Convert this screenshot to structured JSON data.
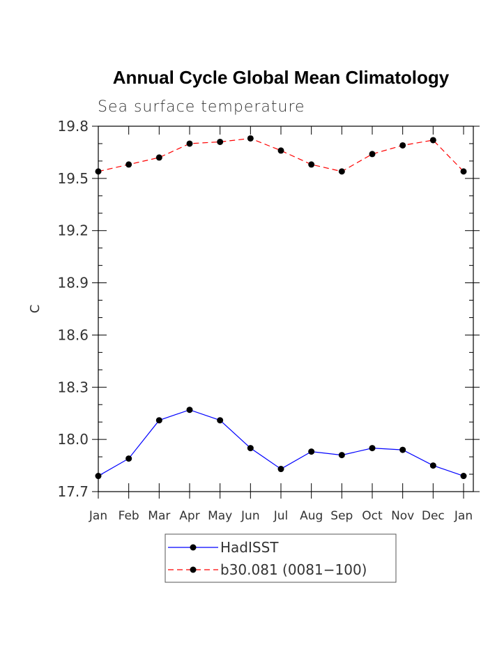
{
  "chart_data": {
    "type": "line",
    "title": "Annual Cycle Global Mean Climatology",
    "subtitle": "Sea surface temperature",
    "xlabel": "",
    "ylabel": "C",
    "categories": [
      "Jan",
      "Feb",
      "Mar",
      "Apr",
      "May",
      "Jun",
      "Jul",
      "Aug",
      "Sep",
      "Oct",
      "Nov",
      "Dec",
      "Jan"
    ],
    "ylim": [
      17.7,
      19.8
    ],
    "yticks": [
      "17.7",
      "18.0",
      "18.3",
      "18.6",
      "18.9",
      "19.2",
      "19.5",
      "19.8"
    ],
    "legend_position": "bottom",
    "series": [
      {
        "name": "HadISST",
        "color": "#0000ff",
        "dash": "solid",
        "values": [
          17.79,
          17.89,
          18.11,
          18.17,
          18.11,
          17.95,
          17.83,
          17.93,
          17.91,
          17.95,
          17.94,
          17.85,
          17.79
        ]
      },
      {
        "name": "b30.081 (0081−100)",
        "color": "#ff0000",
        "dash": "dashed",
        "values": [
          19.54,
          19.58,
          19.62,
          19.7,
          19.71,
          19.73,
          19.66,
          19.58,
          19.54,
          19.64,
          19.69,
          19.72,
          19.54
        ]
      }
    ]
  }
}
